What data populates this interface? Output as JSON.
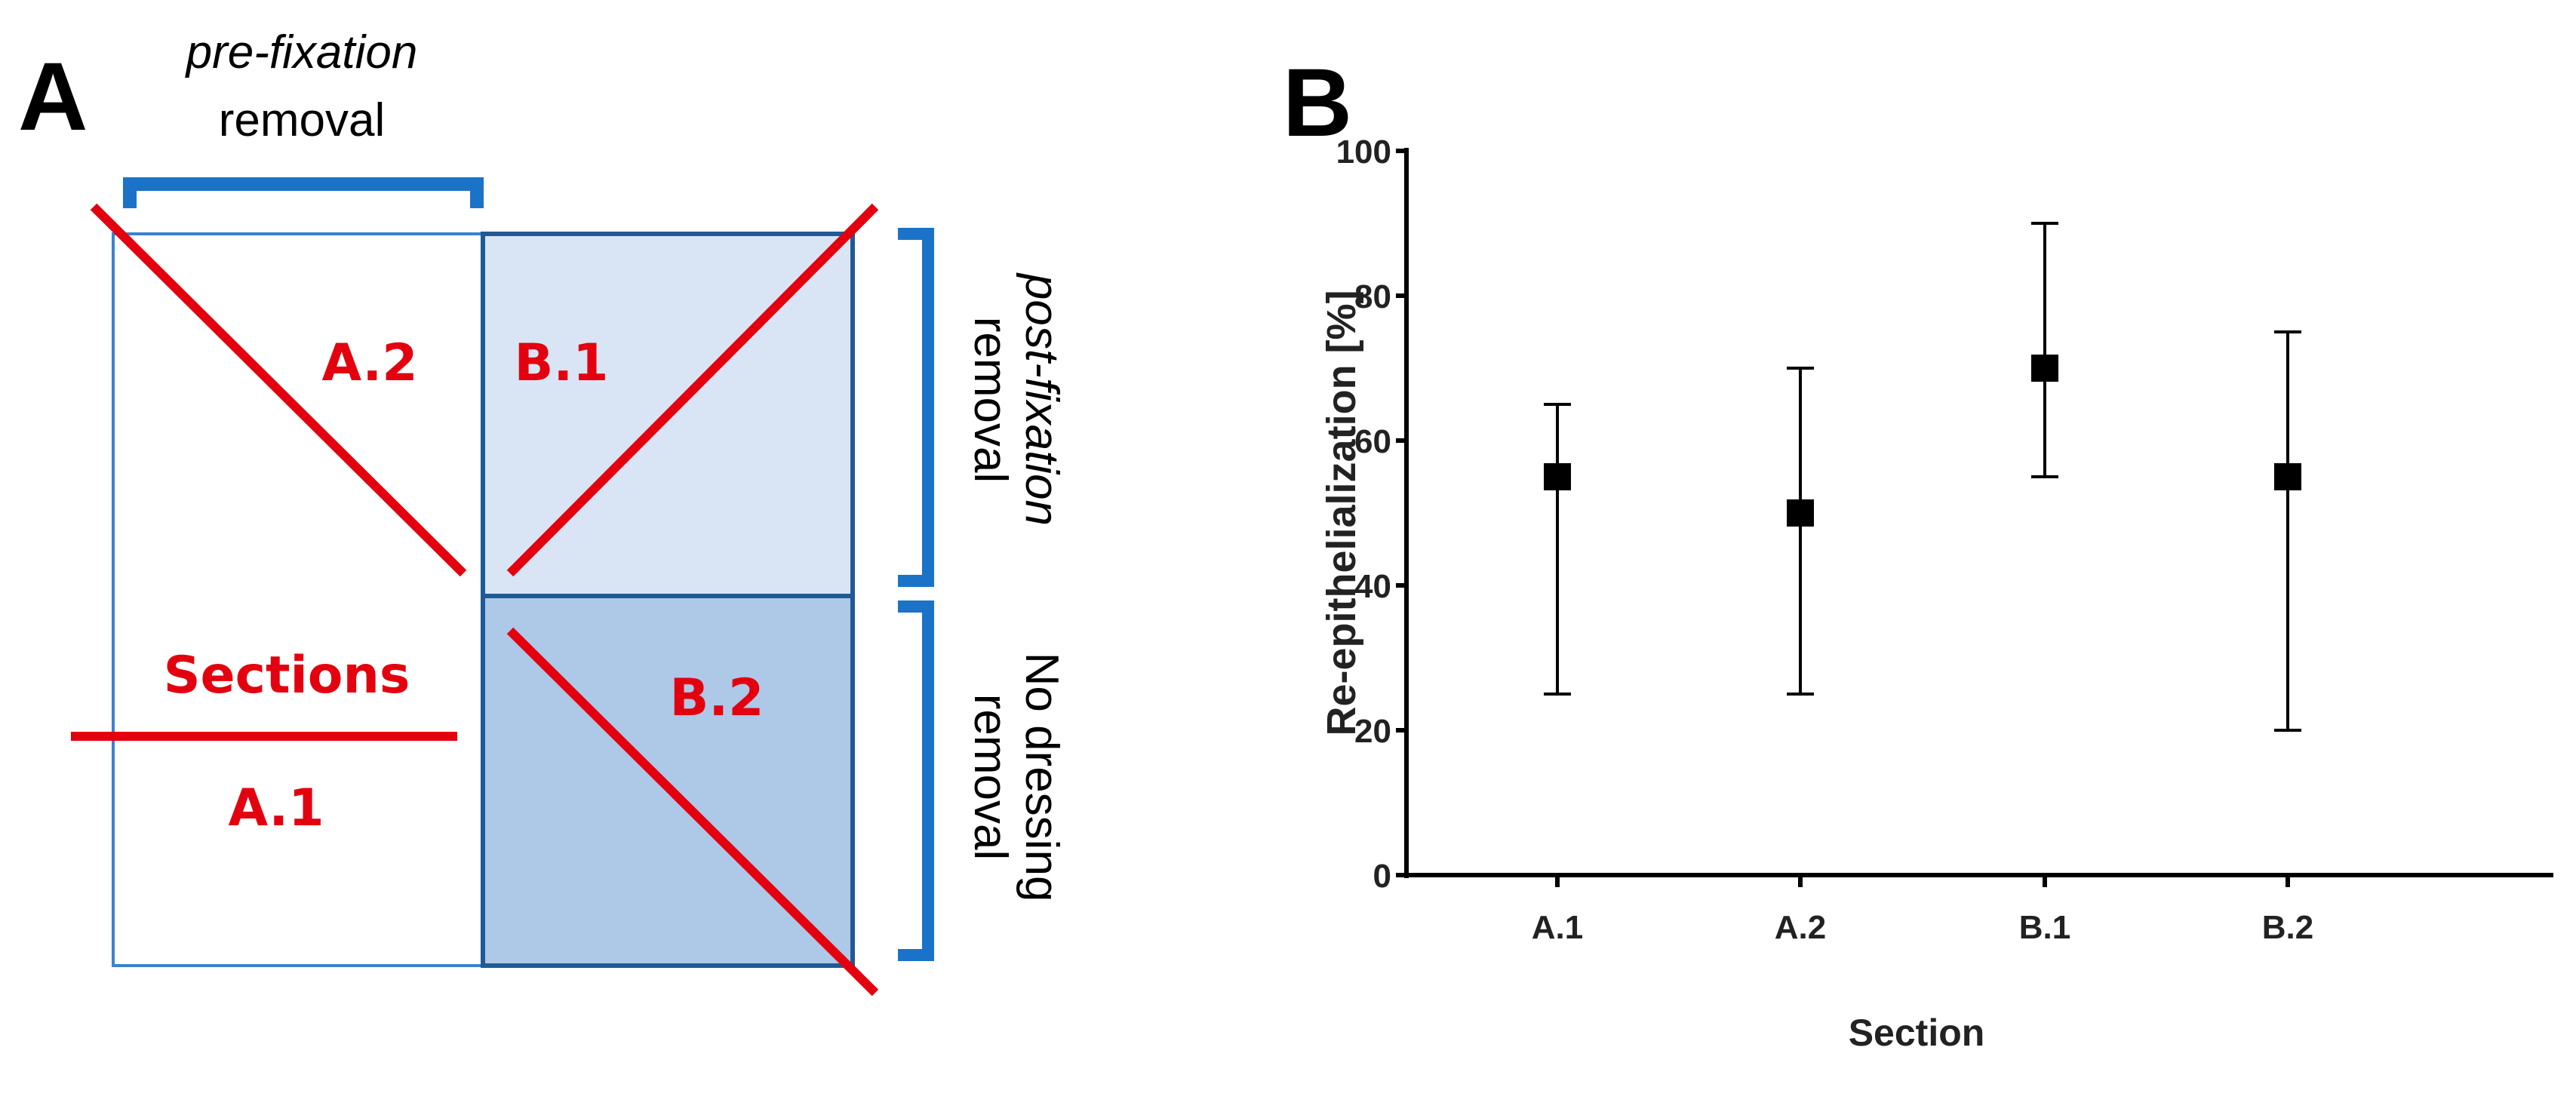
{
  "panel_a": {
    "label": "A",
    "top_bracket": {
      "line1": "pre-fixation",
      "line2": "removal"
    },
    "right_bracket_upper": {
      "line1": "post-fixation",
      "line2": "removal"
    },
    "right_bracket_lower": {
      "line1": "No dressing",
      "line2": "removal"
    },
    "sections_label": "Sections",
    "regions": [
      "A.1",
      "A.2",
      "B.1",
      "B.2"
    ],
    "colors": {
      "bracket": "#1a73c8",
      "cut_line": "#e3000f",
      "b1_fill": "#d9e5f4",
      "b2_fill": "#aec8e8",
      "border": "#1f5a96"
    }
  },
  "panel_b": {
    "label": "B"
  },
  "chart_data": {
    "type": "scatter",
    "title": "",
    "xlabel": "Section",
    "ylabel": "Re-epithelialization [%]",
    "categories": [
      "A.1",
      "A.2",
      "B.1",
      "B.2"
    ],
    "values": [
      55,
      50,
      70,
      55
    ],
    "error_low": [
      25,
      25,
      55,
      20
    ],
    "error_high": [
      65,
      70,
      90,
      75
    ],
    "ylim": [
      0,
      100
    ],
    "yticks": [
      0,
      20,
      40,
      60,
      80,
      100
    ],
    "grid": false,
    "marker": "square",
    "color": "#000000"
  }
}
